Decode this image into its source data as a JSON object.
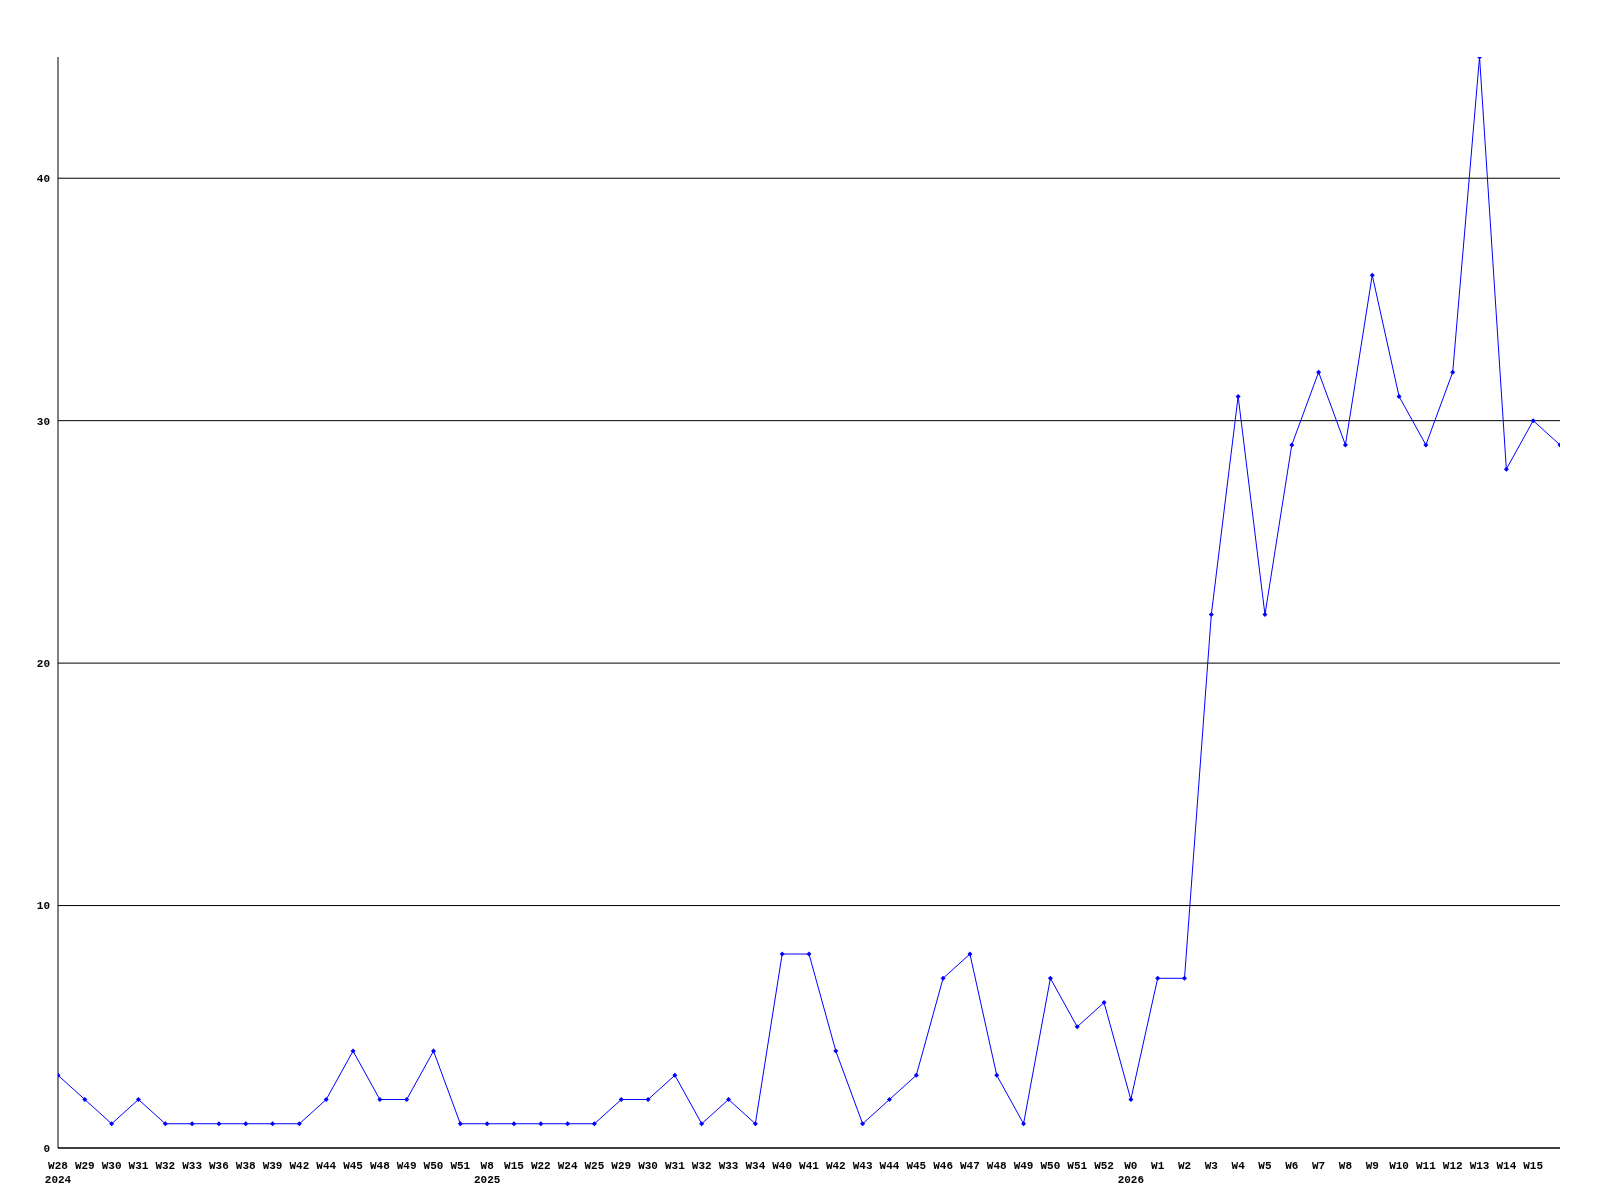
{
  "chart_data": {
    "type": "line",
    "categories": [
      "W28\n2024",
      "W29",
      "W30",
      "W31",
      "W32",
      "W33",
      "W36",
      "W38",
      "W39",
      "W42",
      "W44",
      "W45",
      "W48",
      "W49",
      "W50",
      "W51",
      "W8\n2025",
      "W15",
      "W22",
      "W24",
      "W25",
      "W29",
      "W30",
      "W31",
      "W32",
      "W33",
      "W34",
      "W40",
      "W41",
      "W42",
      "W43",
      "W44",
      "W45",
      "W46",
      "W47",
      "W48",
      "W49",
      "W50",
      "W51",
      "W52",
      "W0\n2026",
      "W1",
      "W2",
      "W3",
      "W4",
      "W5",
      "W6",
      "W7",
      "W8",
      "W9",
      "W10",
      "W11",
      "W12",
      "W13",
      "W14",
      "W15",
      null
    ],
    "series": [
      {
        "color": "#0000ff",
        "values": [
          3,
          2,
          1,
          2,
          1,
          1,
          1,
          1,
          1,
          1,
          2,
          4,
          2,
          2,
          4,
          1,
          1,
          1,
          1,
          1,
          1,
          2,
          2,
          3,
          1,
          2,
          1,
          8,
          8,
          4,
          1,
          2,
          3,
          7,
          8,
          3,
          1,
          7,
          5,
          6,
          2,
          7,
          7,
          22,
          31,
          22,
          29,
          32,
          29,
          36,
          31,
          29,
          32,
          45,
          28,
          30,
          29
        ]
      }
    ],
    "ylim": [
      0,
      45
    ],
    "yticks": [
      0,
      10,
      20,
      30,
      40
    ],
    "grid": "y",
    "marker": "diamond",
    "line_style": "solid",
    "legend": false
  }
}
